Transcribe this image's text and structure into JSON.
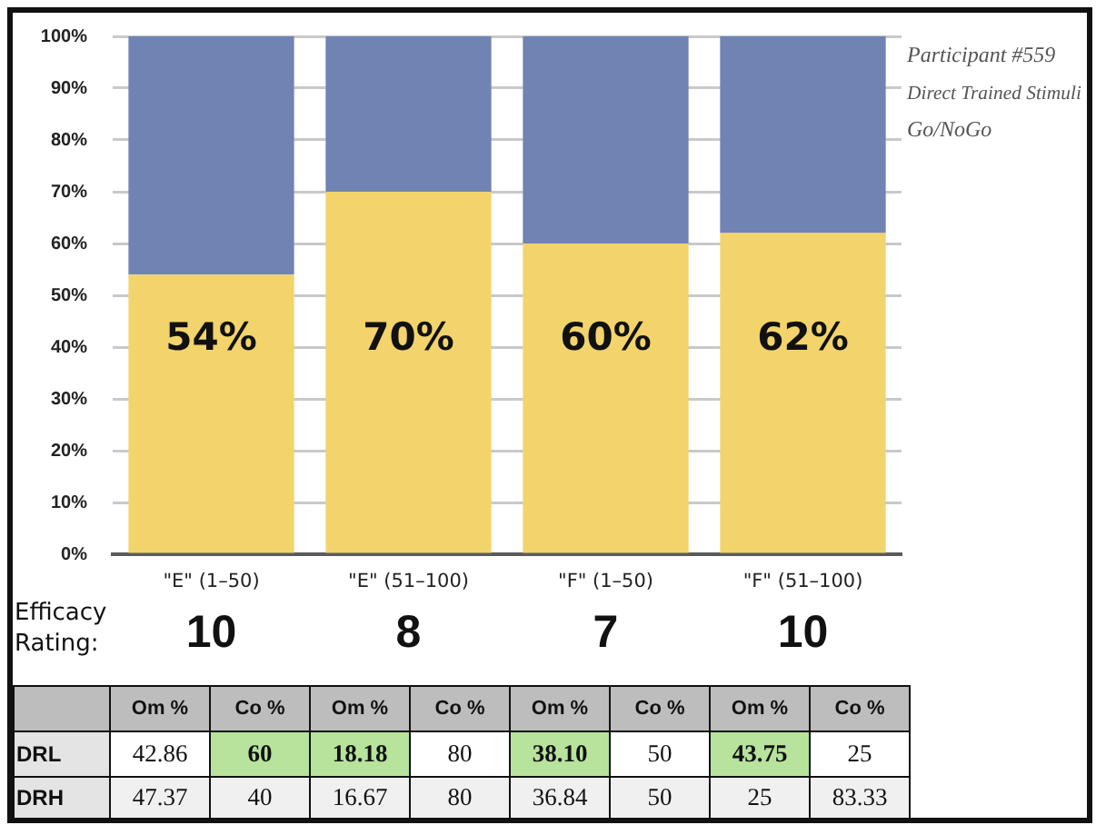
{
  "chart_data": [
    {
      "type": "bar",
      "stacked": true,
      "categories": [
        "\"E\" (1–50)",
        "\"E\" (51–100)",
        "\"F\" (1–50)",
        "\"F\" (51–100)"
      ],
      "series": [
        {
          "color": "#f3d46c",
          "values": [
            54,
            70,
            60,
            62
          ],
          "value_labels": [
            "54%",
            "70%",
            "60%",
            "62%"
          ]
        },
        {
          "color": "#7084b3",
          "values": [
            46,
            30,
            40,
            38
          ]
        }
      ],
      "ylim": [
        0,
        100
      ],
      "yticks": [
        {
          "value": 0,
          "label": "0%"
        },
        {
          "value": 10,
          "label": "10%"
        },
        {
          "value": 20,
          "label": "20%"
        },
        {
          "value": 30,
          "label": "30%"
        },
        {
          "value": 40,
          "label": "40%"
        },
        {
          "value": 50,
          "label": "50%"
        },
        {
          "value": 60,
          "label": "60%"
        },
        {
          "value": 70,
          "label": "70%"
        },
        {
          "value": 80,
          "label": "80%"
        },
        {
          "value": 90,
          "label": "90%"
        },
        {
          "value": 100,
          "label": "100%"
        }
      ],
      "grid": "y",
      "annotations": [
        "Participant #559",
        "Direct Trained Stimuli",
        "Go/NoGo"
      ]
    },
    {
      "type": "other",
      "title": "Efficacy Rating:",
      "annotations": [
        "10",
        "8",
        "7",
        "10"
      ]
    },
    {
      "type": "heatmap",
      "categories": [
        "Om %",
        "Co %",
        "Om %",
        "Co %",
        "Om %",
        "Co %",
        "Om %",
        "Co %"
      ],
      "y_categories": [
        "DRL",
        "DRH"
      ],
      "cells": [
        [
          42.86,
          60,
          18.18,
          80,
          38.1,
          50,
          43.75,
          25
        ],
        [
          47.37,
          40,
          16.67,
          80,
          36.84,
          50,
          25,
          83.33
        ]
      ],
      "cell_labels": [
        [
          "42.86",
          "60",
          "18.18",
          "80",
          "38.10",
          "50",
          "43.75",
          "25"
        ],
        [
          "47.37",
          "40",
          "16.67",
          "80",
          "36.84",
          "50",
          "25",
          "83.33"
        ]
      ],
      "colors": [
        [
          "#ffffff",
          "#b7e39c",
          "#b7e39c",
          "#ffffff",
          "#b7e39c",
          "#ffffff",
          "#b7e39c",
          "#ffffff"
        ],
        [
          "#f0f0f0",
          "#f0f0f0",
          "#f0f0f0",
          "#f0f0f0",
          "#f0f0f0",
          "#f0f0f0",
          "#f0f0f0",
          "#f0f0f0"
        ]
      ]
    }
  ]
}
